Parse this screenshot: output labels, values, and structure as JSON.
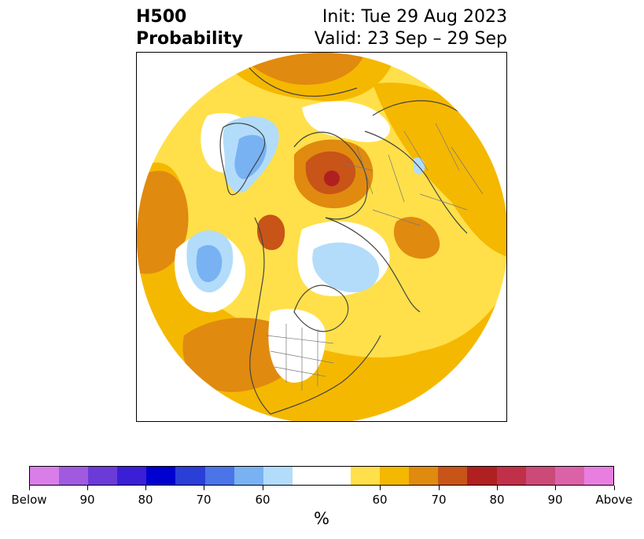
{
  "header": {
    "title_line1": "H500",
    "title_line2": "Probability",
    "init_text": "Init: Tue 29 Aug 2023",
    "valid_text": "Valid: 23 Sep – 29 Sep"
  },
  "colorbar": {
    "colors": [
      "#d97ee8",
      "#a05ae0",
      "#6b3bd8",
      "#3a1fd6",
      "#0000d0",
      "#2a3ed8",
      "#4a74e8",
      "#78b2f2",
      "#b2dcfa",
      "#ffffff",
      "#ffffff",
      "#ffe04a",
      "#f5b800",
      "#e08a10",
      "#c85418",
      "#b02020",
      "#c03048",
      "#cc4a78",
      "#dc62a8",
      "#e87ee0"
    ],
    "unit": "%",
    "tick_labels": [
      "Below",
      "90",
      "80",
      "70",
      "60",
      "60",
      "70",
      "80",
      "90",
      "Above"
    ]
  },
  "map": {
    "projection": "north-polar-stereographic",
    "region": "Northern Hemisphere"
  }
}
